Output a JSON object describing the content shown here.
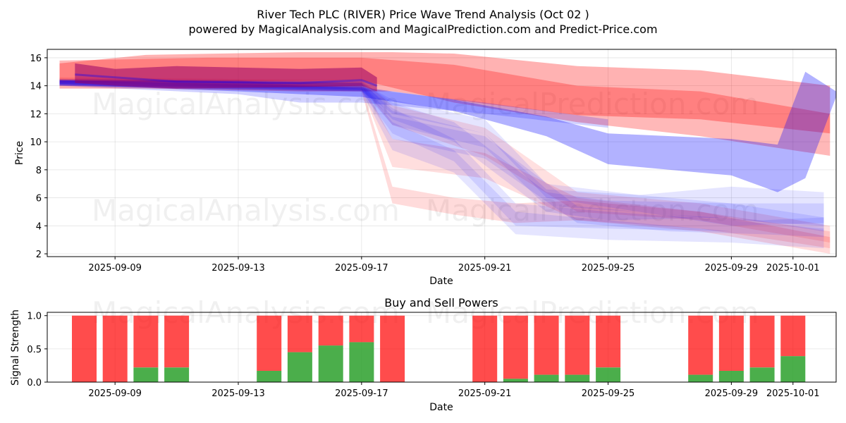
{
  "title_line1": "River Tech PLC (RIVER) Price Wave Trend Analysis (Oct 02 )",
  "title_line2": "powered by MagicalAnalysis.com and MagicalPrediction.com and Predict-Price.com",
  "watermarks": [
    "MagicalAnalysis.com",
    "MagicalPrediction.com"
  ],
  "colors": {
    "red": "#ff0000",
    "blue": "#0000ff",
    "purple": "#990066",
    "buy": "#2ca02c",
    "sell": "#ff0000"
  },
  "chart_data": [
    {
      "type": "area",
      "title": "",
      "xlabel": "Date",
      "ylabel": "Price",
      "ylim": [
        1.8,
        16.6
      ],
      "xlim": [
        -2.2,
        23.4
      ],
      "grid": true,
      "x_tick_labels": [
        "2025-09-09",
        "2025-09-13",
        "2025-09-17",
        "2025-09-21",
        "2025-09-25",
        "2025-09-29",
        "2025-10-01"
      ],
      "x_tick_positions": [
        0,
        4,
        8,
        12,
        16,
        20,
        22
      ],
      "y_ticks": [
        2,
        4,
        6,
        8,
        10,
        12,
        14,
        16
      ],
      "x_origin_date": "2025-09-09",
      "series": [
        {
          "name": "red-band-1",
          "color": "red",
          "opacity": 0.3,
          "x": [
            -1.8,
            1,
            6,
            9,
            11,
            15,
            19,
            23.2
          ],
          "lo": [
            13.8,
            13.8,
            13.6,
            13.6,
            13.0,
            11.9,
            11.6,
            10.6
          ],
          "hi": [
            15.6,
            16.2,
            16.4,
            16.4,
            16.3,
            15.4,
            15.1,
            14.0
          ]
        },
        {
          "name": "red-band-2",
          "color": "red",
          "opacity": 0.28,
          "x": [
            -1.8,
            3,
            8,
            11,
            15,
            19,
            23.2
          ],
          "lo": [
            14.2,
            14.3,
            14.4,
            12.8,
            11.4,
            10.4,
            9.0
          ],
          "hi": [
            15.8,
            16.0,
            16.0,
            15.5,
            14.0,
            13.6,
            12.0
          ]
        },
        {
          "name": "red-crash-1",
          "color": "red",
          "opacity": 0.14,
          "x": [
            -1.8,
            2,
            8,
            9,
            11,
            13,
            15,
            19,
            23.2
          ],
          "lo": [
            14.0,
            13.8,
            13.6,
            5.6,
            4.8,
            4.2,
            4.4,
            3.6,
            2.0
          ],
          "hi": [
            14.4,
            14.2,
            14.0,
            6.8,
            6.0,
            5.6,
            5.8,
            5.0,
            3.2
          ]
        },
        {
          "name": "red-crash-2",
          "color": "red",
          "opacity": 0.13,
          "x": [
            -1.8,
            8,
            9,
            12,
            15,
            19,
            23.2
          ],
          "lo": [
            14.1,
            13.8,
            8.2,
            7.4,
            4.4,
            3.8,
            2.4
          ],
          "hi": [
            14.5,
            14.2,
            10.2,
            9.2,
            6.0,
            5.0,
            3.6
          ]
        },
        {
          "name": "red-crash-3",
          "color": "red",
          "opacity": 0.12,
          "x": [
            -1.8,
            8,
            9,
            12,
            15,
            19,
            23.2
          ],
          "lo": [
            14.2,
            13.9,
            11.2,
            9.0,
            5.0,
            4.4,
            2.8
          ],
          "hi": [
            14.6,
            14.4,
            12.6,
            11.0,
            6.4,
            5.6,
            4.0
          ]
        },
        {
          "name": "blue-band-1",
          "color": "blue",
          "opacity": 0.3,
          "x": [
            -1.8,
            4,
            8,
            11,
            14,
            16,
            20,
            21.5,
            22.4,
            23.4
          ],
          "lo": [
            14.1,
            13.6,
            13.2,
            12.2,
            10.4,
            8.4,
            7.6,
            6.4,
            7.4,
            13.2
          ],
          "hi": [
            14.4,
            14.1,
            13.9,
            13.0,
            11.8,
            10.6,
            10.2,
            9.8,
            15.0,
            13.6
          ]
        },
        {
          "name": "blue-band-2",
          "color": "blue",
          "opacity": 0.18,
          "x": [
            -1.8,
            4,
            6,
            8,
            12,
            16
          ],
          "lo": [
            14.0,
            13.4,
            12.8,
            12.8,
            12.0,
            11.0
          ],
          "hi": [
            14.4,
            14.4,
            14.0,
            13.8,
            12.8,
            11.6
          ]
        },
        {
          "name": "blue-fan-1",
          "color": "blue",
          "opacity": 0.1,
          "x": [
            -1.8,
            8,
            9,
            11,
            13,
            16,
            20,
            23
          ],
          "lo": [
            14.0,
            13.6,
            9.4,
            7.8,
            3.4,
            3.0,
            2.8,
            2.4
          ],
          "hi": [
            14.4,
            14.2,
            11.4,
            9.4,
            5.0,
            4.4,
            3.6,
            3.0
          ]
        },
        {
          "name": "blue-fan-2",
          "color": "blue",
          "opacity": 0.1,
          "x": [
            -1.8,
            8,
            9,
            11,
            13,
            16,
            20,
            23
          ],
          "lo": [
            14.0,
            13.6,
            10.6,
            8.6,
            4.0,
            3.8,
            3.6,
            3.0
          ],
          "hi": [
            14.4,
            14.2,
            12.4,
            10.2,
            5.6,
            5.0,
            4.4,
            3.8
          ]
        },
        {
          "name": "blue-fan-3",
          "color": "blue",
          "opacity": 0.1,
          "x": [
            -1.8,
            8,
            9,
            11,
            14,
            16,
            20,
            23
          ],
          "lo": [
            14.1,
            13.7,
            11.6,
            10.0,
            5.0,
            4.4,
            4.6,
            3.6
          ],
          "hi": [
            14.5,
            14.3,
            12.8,
            11.4,
            6.4,
            5.8,
            5.6,
            4.6
          ]
        },
        {
          "name": "blue-fan-4",
          "color": "blue",
          "opacity": 0.1,
          "x": [
            -1.8,
            8,
            9,
            12,
            14,
            17,
            20,
            23
          ],
          "lo": [
            14.1,
            13.7,
            11.2,
            9.6,
            5.4,
            5.0,
            4.4,
            4.0
          ],
          "hi": [
            14.5,
            14.3,
            12.2,
            10.6,
            6.6,
            6.2,
            6.8,
            6.4
          ]
        },
        {
          "name": "blue-fan-5",
          "color": "blue",
          "opacity": 0.1,
          "x": [
            -1.8,
            8,
            9,
            12,
            15,
            18,
            21,
            23
          ],
          "lo": [
            14.0,
            13.7,
            10.2,
            8.8,
            4.2,
            3.6,
            3.4,
            3.2
          ],
          "hi": [
            14.4,
            14.2,
            11.8,
            10.4,
            5.4,
            4.8,
            4.4,
            4.6
          ]
        },
        {
          "name": "blue-fan-6",
          "color": "blue",
          "opacity": 0.1,
          "x": [
            -1.8,
            8,
            9,
            12,
            14,
            17,
            20,
            23
          ],
          "lo": [
            14.0,
            13.6,
            12.0,
            10.6,
            6.0,
            5.0,
            4.0,
            4.2
          ],
          "hi": [
            14.4,
            14.2,
            13.0,
            11.6,
            7.0,
            6.2,
            5.6,
            5.6
          ]
        },
        {
          "name": "purple-core",
          "color": "purple",
          "opacity": 0.55,
          "x": [
            -1.3,
            0,
            2,
            6,
            8,
            8.5
          ],
          "lo": [
            14.2,
            14.0,
            13.8,
            13.9,
            14.0,
            13.6
          ],
          "hi": [
            15.6,
            15.2,
            15.4,
            15.2,
            15.3,
            14.6
          ]
        }
      ],
      "lines": [
        {
          "name": "blue-trend-line",
          "color": "blue",
          "x": [
            -1.3,
            2,
            6,
            8,
            8.5
          ],
          "y": [
            14.8,
            14.3,
            14.2,
            14.4,
            14.0
          ]
        }
      ]
    },
    {
      "type": "bar",
      "title": "Buy and Sell Powers",
      "xlabel": "Date",
      "ylabel": "Signal Strength",
      "ylim": [
        0,
        1.05
      ],
      "xlim": [
        -2.2,
        23.4
      ],
      "y_ticks": [
        0.0,
        0.5,
        1.0
      ],
      "y_tick_labels": [
        "0.0",
        "0.5",
        "1.0"
      ],
      "x_tick_labels": [
        "2025-09-09",
        "2025-09-13",
        "2025-09-17",
        "2025-09-21",
        "2025-09-25",
        "2025-09-29",
        "2025-10-01"
      ],
      "x_tick_positions": [
        0,
        4,
        8,
        12,
        16,
        20,
        22
      ],
      "x": [
        -1,
        0,
        1,
        2,
        5,
        6,
        7,
        8,
        9,
        12,
        13,
        14,
        15,
        16,
        19,
        20,
        21,
        22
      ],
      "buy": [
        0.0,
        0.0,
        0.22,
        0.22,
        0.17,
        0.45,
        0.55,
        0.6,
        0.0,
        0.0,
        0.05,
        0.11,
        0.11,
        0.22,
        0.11,
        0.17,
        0.22,
        0.39
      ],
      "sell_top": 1.0
    }
  ]
}
